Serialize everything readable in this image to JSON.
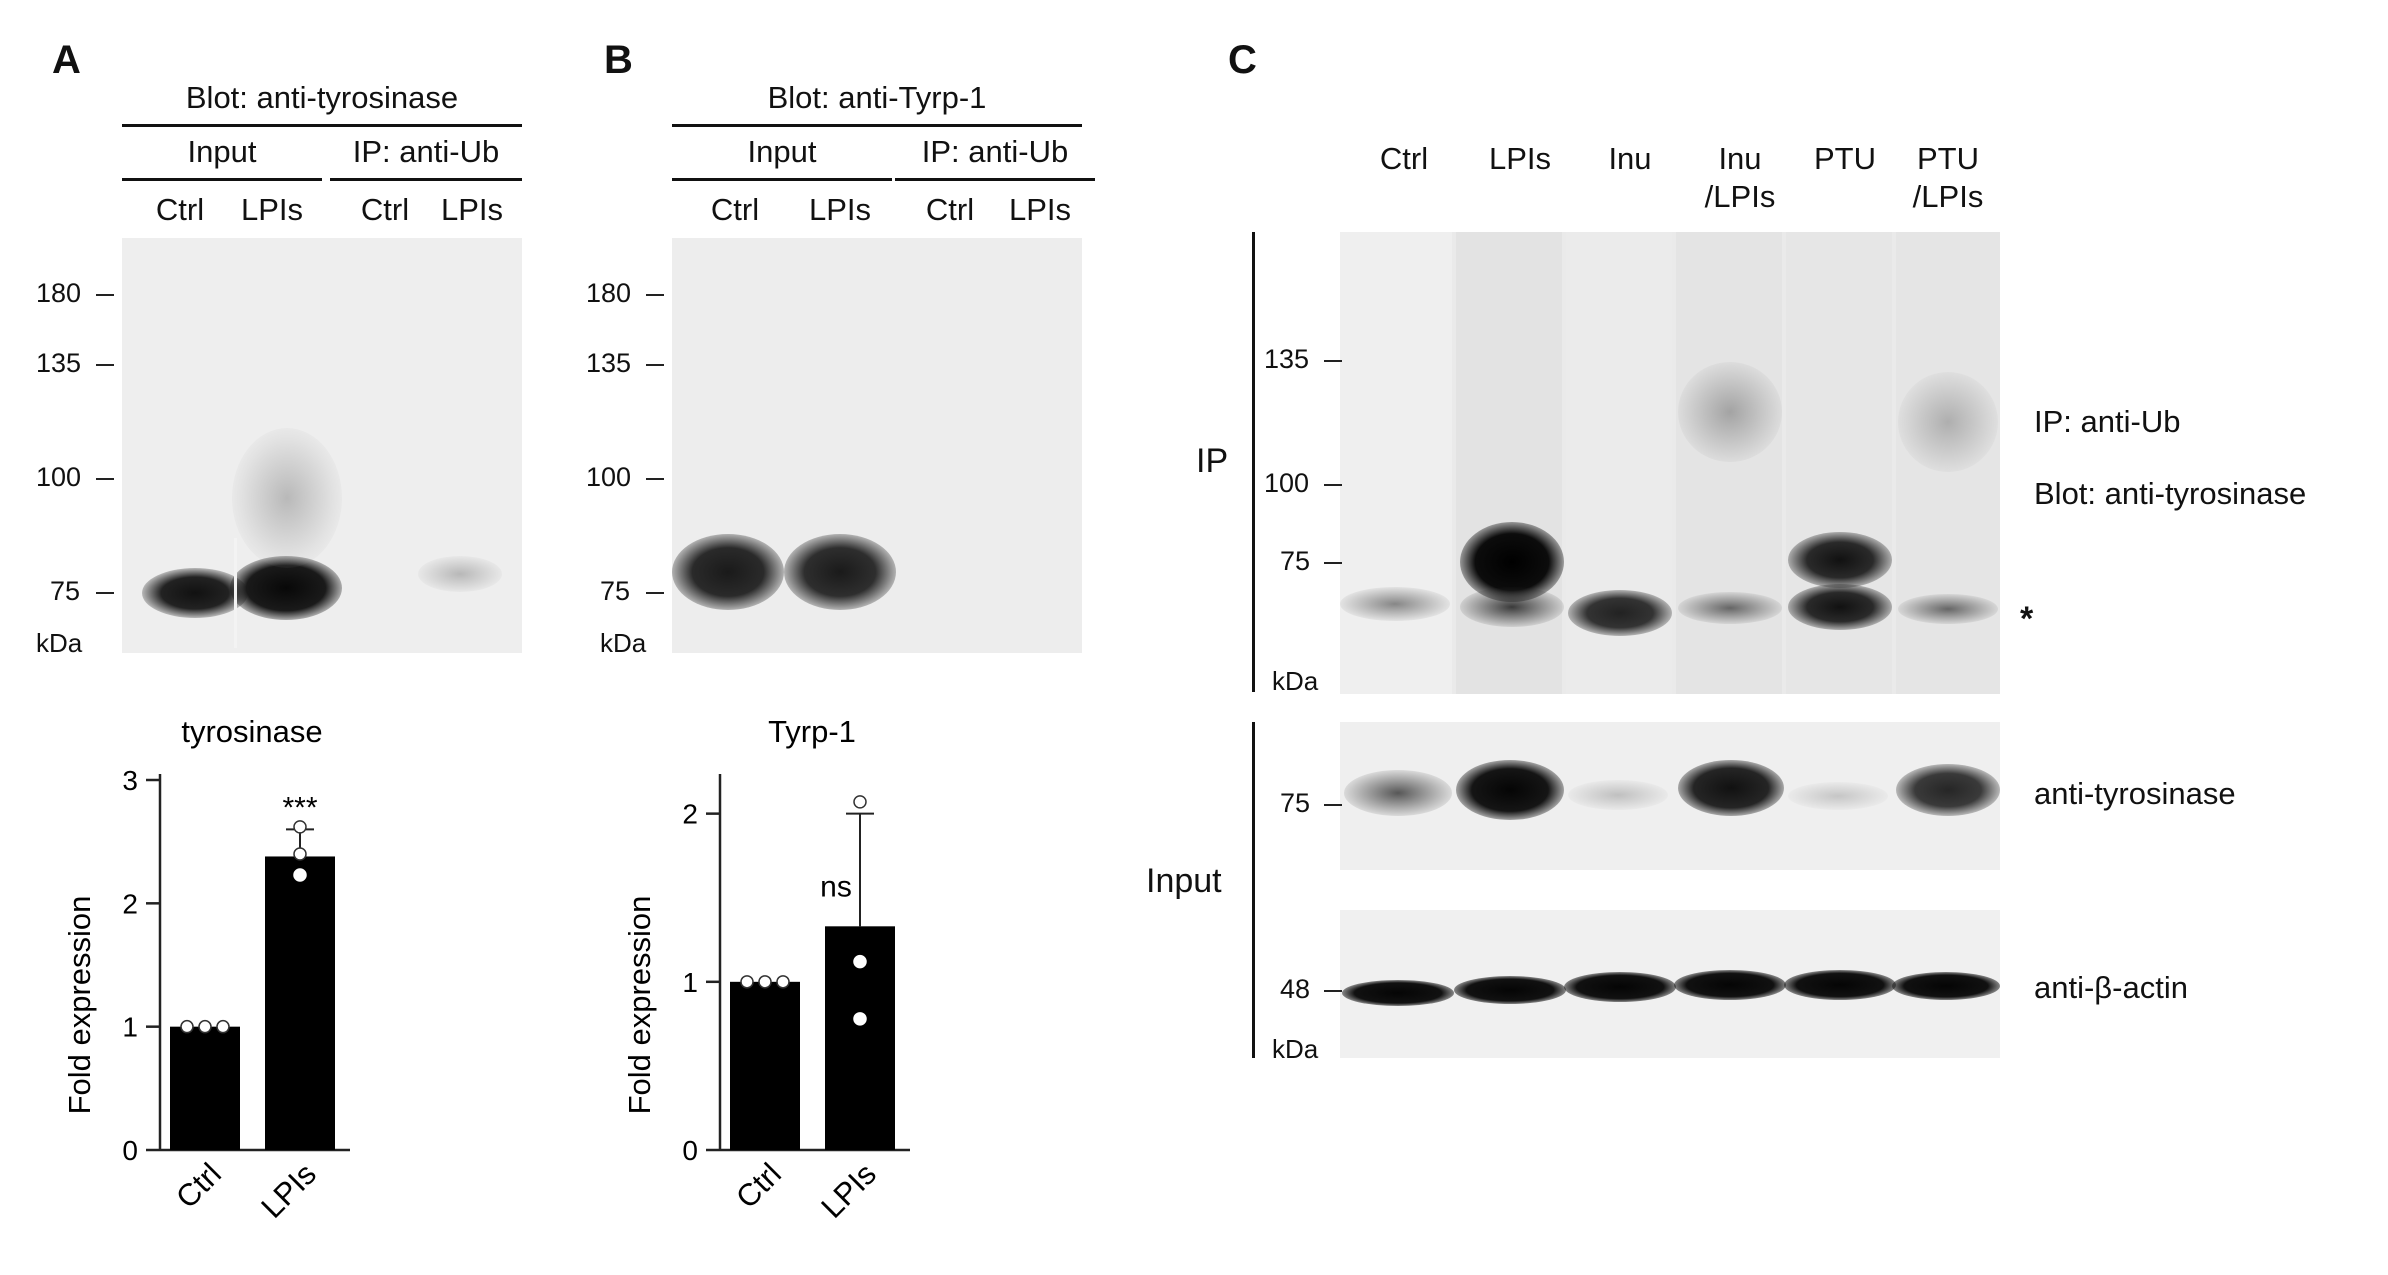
{
  "panel_a": {
    "letter": "A",
    "blot_title": "Blot: anti-tyrosinase",
    "groups": [
      "Input",
      "IP: anti-Ub"
    ],
    "lanes": [
      "Ctrl",
      "LPIs",
      "Ctrl",
      "LPIs"
    ],
    "markers": [
      "180",
      "135",
      "100",
      "75"
    ],
    "unit": "kDa"
  },
  "panel_b": {
    "letter": "B",
    "blot_title": "Blot: anti-Tyrp-1",
    "groups": [
      "Input",
      "IP: anti-Ub"
    ],
    "lanes": [
      "Ctrl",
      "LPIs",
      "Ctrl",
      "LPIs"
    ],
    "markers": [
      "180",
      "135",
      "100",
      "75"
    ],
    "unit": "kDa"
  },
  "panel_c": {
    "letter": "C",
    "lanes": [
      "Ctrl",
      "LPIs",
      "Inu",
      "Inu\n/LPIs",
      "PTU",
      "PTU\n/LPIs"
    ],
    "ip_label": "IP",
    "input_label": "Input",
    "ip_markers": [
      "135",
      "100",
      "75"
    ],
    "input_marker_tyr": "75",
    "input_marker_actin": "48",
    "unit": "kDa",
    "ip_annot_1": "IP: anti-Ub",
    "ip_annot_2": "Blot: anti-tyrosinase",
    "asterisk": "*",
    "row_tyr": "anti-tyrosinase",
    "row_actin": "anti-β-actin"
  },
  "chart_data": [
    {
      "type": "bar",
      "title": "tyrosinase",
      "ylabel": "Fold expression",
      "categories": [
        "Ctrl",
        "LPIs"
      ],
      "values": [
        1.0,
        2.38
      ],
      "error": [
        0.0,
        0.22
      ],
      "points": [
        [
          1.0,
          1.0,
          1.0
        ],
        [
          2.62,
          2.4,
          2.23
        ]
      ],
      "annotations": [
        "",
        "***"
      ],
      "ylim": [
        0,
        3
      ],
      "yticks": [
        "0",
        "1",
        "2",
        "3"
      ]
    },
    {
      "type": "bar",
      "title": "Tyrp-1",
      "ylabel": "Fold expression",
      "categories": [
        "Ctrl",
        "LPIs"
      ],
      "values": [
        1.0,
        1.33
      ],
      "error": [
        0.0,
        0.67
      ],
      "points": [
        [
          1.0,
          1.0,
          1.0
        ],
        [
          2.07,
          1.12,
          0.78
        ]
      ],
      "annotations": [
        "",
        "ns"
      ],
      "ylim": [
        0,
        2.2
      ],
      "yticks": [
        "0",
        "1",
        "2"
      ]
    }
  ]
}
